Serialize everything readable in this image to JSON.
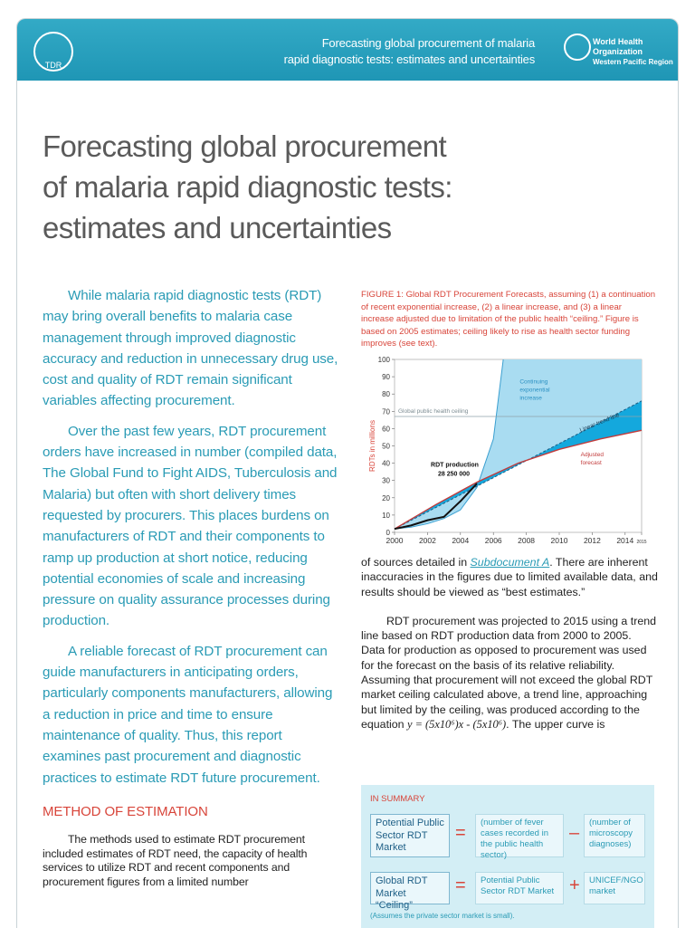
{
  "header": {
    "logo_left": "TDR",
    "lines": [
      "Forecasting global procurement of malaria",
      "rapid diagnostic tests: estimates and uncertainties"
    ],
    "org": [
      "World Health",
      "Organization",
      "Western Pacific Region"
    ]
  },
  "title": [
    "Forecasting global procurement",
    "of malaria rapid diagnostic tests:",
    "estimates and uncertainties"
  ],
  "left_paragraphs": [
    "While malaria rapid diagnostic tests (RDT) may bring overall benefits to malaria case management through improved diagnostic accuracy and reduction in unnecessary drug use, cost and quality of RDT remain significant variables affecting procurement.",
    "Over the past few years, RDT procurement orders have increased in number (compiled data, The Global Fund to Fight AIDS, Tuberculosis and Malaria) but often with short delivery times requested by procurers. This places burdens on manufacturers of RDT and their components to ramp up production at short notice, reducing potential economies of scale and increasing pressure on quality assurance processes during production.",
    "A reliable forecast of RDT procurement can guide manufacturers in anticipating orders, particularly components manufacturers, allowing a reduction in price and time to ensure maintenance of quality. Thus, this report examines past procurement and diagnostic practices to estimate RDT future procurement."
  ],
  "method_heading": "METHOD OF ESTIMATION",
  "method_text": "The methods used to estimate RDT procurement included estimates of RDT need, the capacity of health services to utilize RDT and recent components and procurement figures from a limited number",
  "figure_caption": "FIGURE 1: Global RDT Procurement Forecasts, assuming (1) a continuation of recent exponential increase, (2) a linear increase, and (3) a linear increase adjusted due to limitation of the public health “ceiling.” Figure is based on 2005 estimates; ceiling likely to rise as health sector funding improves (see text).",
  "chart_data": {
    "type": "line",
    "y_label": "RDTs in millions",
    "xlim": [
      2000,
      2015
    ],
    "xticks": [
      2000,
      2002,
      2004,
      2006,
      2008,
      2010,
      2012,
      2014,
      2015
    ],
    "ylim": [
      0,
      100
    ],
    "yticks": [
      0,
      10,
      20,
      30,
      40,
      50,
      60,
      70,
      80,
      90,
      100
    ],
    "series": [
      {
        "name": "Continuing exponential increase",
        "color": "#3a9fd0",
        "x": [
          2000,
          2001,
          2002,
          2003,
          2004,
          2005,
          2006,
          2006.6
        ],
        "values": [
          2,
          3,
          5,
          8,
          13,
          26,
          54,
          100
        ]
      },
      {
        "name": "Linear trend line",
        "color": "#1d5f86",
        "x": [
          2000,
          2015
        ],
        "values": [
          2,
          76
        ]
      },
      {
        "name": "Adjusted forecast",
        "color": "#c23b3b",
        "x": [
          2000,
          2002.5,
          2005,
          2007.5,
          2010,
          2012.5,
          2015
        ],
        "values": [
          2,
          16,
          29,
          40,
          48,
          54,
          59
        ]
      },
      {
        "name": "Global public health ceiling",
        "color": "#8fa3aa",
        "x": [
          2000,
          2015
        ],
        "values": [
          67,
          67
        ]
      },
      {
        "name": "RDT production",
        "color": "#111111",
        "x": [
          2000,
          2001,
          2002,
          2003,
          2004,
          2005
        ],
        "values": [
          2,
          4,
          7,
          9,
          18,
          28.25
        ]
      }
    ],
    "area_colors": [
      "#a9dcf1",
      "#14a8dd"
    ],
    "annotations": {
      "exponential": [
        "Continuing",
        "exponential",
        "increase"
      ],
      "production": [
        "RDT production",
        "28 250 000"
      ],
      "adjusted": [
        "Adjusted",
        "forecast"
      ]
    }
  },
  "right_paragraphs": [
    {
      "before": "of sources detailed in ",
      "link": "Subdocument A",
      "after": ". There are inherent inaccuracies in the figures due to limited available data, and results should be viewed as “best estimates.”"
    },
    {
      "before": "RDT procurement was projected to 2015 using a trend line based on RDT production data from 2000 to 2005. Data for production as opposed to procurement was used for the forecast on the basis of its relative reliability. Assuming that procurement will not exceed the global RDT market ceiling calculated above, a trend line, approaching but limited by the ceiling, was produced according to the equation ",
      "equation": "y = (5x10⁶)x - (5x10⁶)",
      "after": ". The upper curve is"
    }
  ],
  "summary": {
    "heading": "IN SUMMARY",
    "row1": [
      "Potential Public Sector RDT Market",
      "=",
      "(number of fever cases recorded in the public health sector)",
      "–",
      "(number of microscopy diagnoses)"
    ],
    "row2": [
      "Global RDT Market “Ceiling”",
      "=",
      "Potential Public Sector RDT Market",
      "+",
      "UNICEF/NGO market"
    ],
    "note": "(Assumes the private sector market is small)."
  }
}
